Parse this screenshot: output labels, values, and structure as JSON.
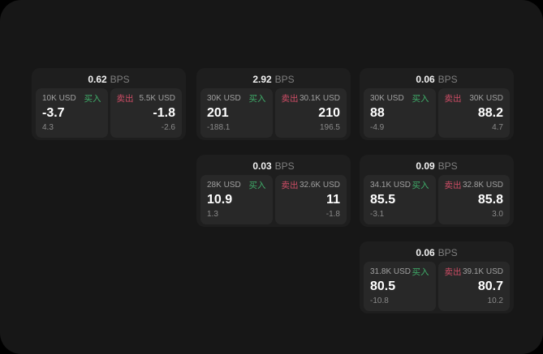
{
  "labels": {
    "bps_unit": "BPS",
    "buy": "买入",
    "sell": "卖出"
  },
  "colors": {
    "buy": "#3fae6a",
    "sell": "#cf4d66",
    "surface": "#171717",
    "card": "#1e1e1e",
    "panel": "#282828"
  },
  "cards": [
    {
      "bps": "0.62",
      "buy": {
        "amount": "10K USD",
        "value": "-3.7",
        "delta": "4.3"
      },
      "sell": {
        "amount": "5.5K USD",
        "value": "-1.8",
        "delta": "-2.6"
      }
    },
    {
      "bps": "2.92",
      "buy": {
        "amount": "30K USD",
        "value": "201",
        "delta": "-188.1"
      },
      "sell": {
        "amount": "30.1K USD",
        "value": "210",
        "delta": "196.5"
      }
    },
    {
      "bps": "0.06",
      "buy": {
        "amount": "30K USD",
        "value": "88",
        "delta": "-4.9"
      },
      "sell": {
        "amount": "30K USD",
        "value": "88.2",
        "delta": "4.7"
      }
    },
    {
      "bps": "0.03",
      "buy": {
        "amount": "28K USD",
        "value": "10.9",
        "delta": "1.3"
      },
      "sell": {
        "amount": "32.6K USD",
        "value": "11",
        "delta": "-1.8"
      }
    },
    {
      "bps": "0.09",
      "buy": {
        "amount": "34.1K USD",
        "value": "85.5",
        "delta": "-3.1"
      },
      "sell": {
        "amount": "32.8K USD",
        "value": "85.8",
        "delta": "3.0"
      }
    },
    {
      "bps": "0.06",
      "buy": {
        "amount": "31.8K USD",
        "value": "80.5",
        "delta": "-10.8"
      },
      "sell": {
        "amount": "39.1K USD",
        "value": "80.7",
        "delta": "10.2"
      }
    }
  ]
}
